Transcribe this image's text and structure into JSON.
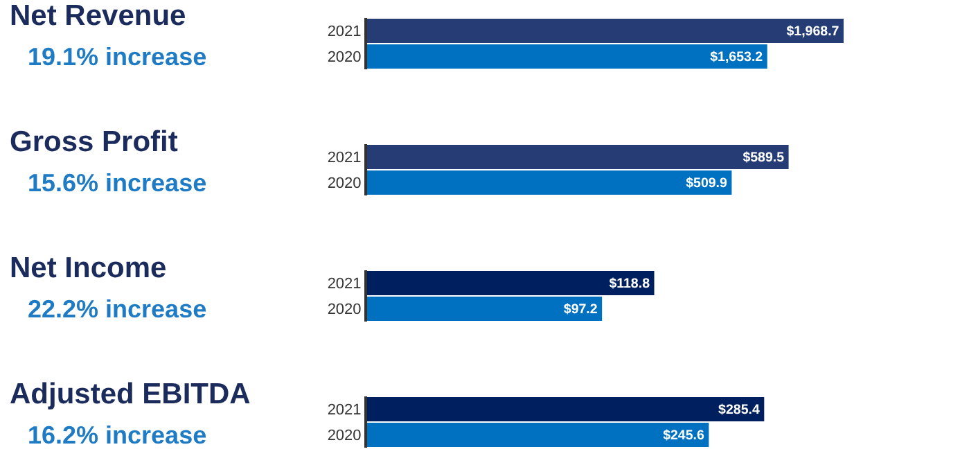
{
  "chart_data": [
    {
      "type": "bar",
      "orientation": "horizontal",
      "title": "Net Revenue",
      "subtitle": "19.1% increase",
      "categories": [
        "2021",
        "2020"
      ],
      "values": [
        1968.7,
        1653.2
      ],
      "colors": [
        "#253d74",
        "#0070c0"
      ],
      "value_labels": [
        "$1,968.7",
        "$1,653.2"
      ]
    },
    {
      "type": "bar",
      "orientation": "horizontal",
      "title": "Gross Profit",
      "subtitle": "15.6% increase",
      "categories": [
        "2021",
        "2020"
      ],
      "values": [
        589.5,
        509.9
      ],
      "colors": [
        "#253d74",
        "#0070c0"
      ],
      "value_labels": [
        "$589.5",
        "$509.9"
      ]
    },
    {
      "type": "bar",
      "orientation": "horizontal",
      "title": "Net Income",
      "subtitle": "22.2% increase",
      "categories": [
        "2021",
        "2020"
      ],
      "values": [
        118.8,
        97.2
      ],
      "colors": [
        "#001f5f",
        "#0070c0"
      ],
      "value_labels": [
        "$118.8",
        "$97.2"
      ]
    },
    {
      "type": "bar",
      "orientation": "horizontal",
      "title": "Adjusted EBITDA",
      "subtitle": "16.2% increase",
      "categories": [
        "2021",
        "2020"
      ],
      "values": [
        285.4,
        245.6
      ],
      "colors": [
        "#001f5f",
        "#0070c0"
      ],
      "value_labels": [
        "$285.4",
        "$245.6"
      ]
    }
  ]
}
